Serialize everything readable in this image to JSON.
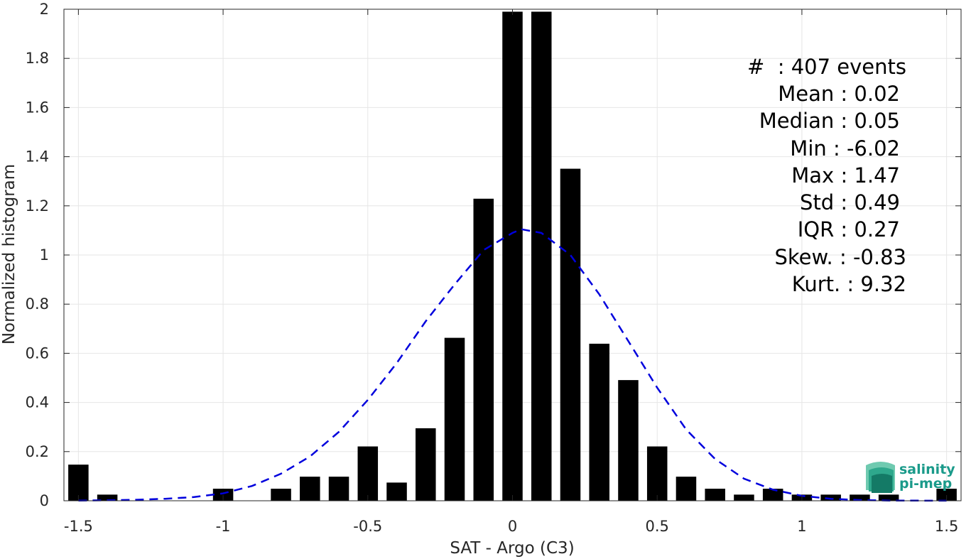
{
  "chart_data": {
    "type": "bar",
    "xlabel": "SAT - Argo (C3)",
    "ylabel": "Normalized histogram",
    "xlim": [
      -1.55,
      1.55
    ],
    "ylim": [
      0,
      2
    ],
    "xticks": [
      -1.5,
      -1,
      -0.5,
      0,
      0.5,
      1,
      1.5
    ],
    "xtick_labels": [
      "-1.5",
      "-1",
      "-0.5",
      "0",
      "0.5",
      "1",
      "1.5"
    ],
    "yticks": [
      0,
      0.2,
      0.4,
      0.6,
      0.8,
      1,
      1.2,
      1.4,
      1.6,
      1.8,
      2
    ],
    "ytick_labels": [
      "0",
      "0.2",
      "0.4",
      "0.6",
      "0.8",
      "1",
      "1.2",
      "1.4",
      "1.6",
      "1.8",
      "2"
    ],
    "grid": true,
    "bar_width": 0.07,
    "bar_color": "#000000",
    "bars": {
      "x": [
        -1.5,
        -1.4,
        -1.3,
        -1.2,
        -1.1,
        -1.0,
        -0.9,
        -0.8,
        -0.7,
        -0.6,
        -0.5,
        -0.4,
        -0.3,
        -0.2,
        -0.1,
        0.0,
        0.1,
        0.2,
        0.3,
        0.4,
        0.5,
        0.6,
        0.7,
        0.8,
        0.9,
        1.0,
        1.1,
        1.2,
        1.3,
        1.5
      ],
      "values": [
        0.147,
        0.025,
        0,
        0,
        0,
        0.049,
        0,
        0.049,
        0.098,
        0.098,
        0.221,
        0.074,
        0.295,
        0.663,
        1.229,
        1.99,
        1.99,
        1.351,
        0.639,
        0.491,
        0.221,
        0.098,
        0.049,
        0.025,
        0.049,
        0.025,
        0.025,
        0.025,
        0.025,
        0.049
      ]
    },
    "fit_curve": {
      "style": "dashed",
      "color": "#0000dd",
      "x": [
        -1.5,
        -1.4,
        -1.3,
        -1.2,
        -1.1,
        -1.0,
        -0.9,
        -0.8,
        -0.7,
        -0.6,
        -0.5,
        -0.4,
        -0.3,
        -0.2,
        -0.1,
        0.0,
        0.03,
        0.1,
        0.2,
        0.3,
        0.4,
        0.5,
        0.6,
        0.7,
        0.8,
        0.9,
        1.0,
        1.1,
        1.2,
        1.3,
        1.4,
        1.5
      ],
      "y": [
        0.001,
        0.002,
        0.004,
        0.008,
        0.015,
        0.03,
        0.06,
        0.11,
        0.18,
        0.28,
        0.41,
        0.56,
        0.73,
        0.88,
        1.02,
        1.09,
        1.105,
        1.09,
        1.0,
        0.84,
        0.65,
        0.46,
        0.29,
        0.17,
        0.09,
        0.045,
        0.02,
        0.008,
        0.003,
        0.001,
        0.0005,
        0.0002
      ]
    },
    "stats": [
      "#  : 407 events",
      "Mean : 0.02",
      "Median : 0.05",
      "Min : -6.02",
      "Max : 1.47",
      "Std : 0.49",
      "IQR : 0.27",
      "Skew. : -0.83",
      "Kurt. : 9.32"
    ]
  },
  "logo": {
    "line1": "salinity",
    "line2": "pi-mep"
  },
  "colors": {
    "grid": "#e6e6e6",
    "axis": "#262626",
    "logo": "#1a9a8a"
  }
}
